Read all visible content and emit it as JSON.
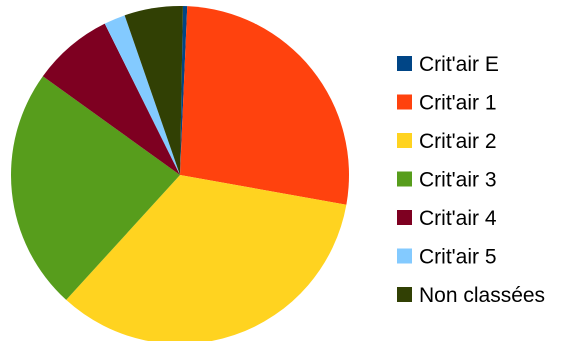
{
  "chart_data": {
    "type": "pie",
    "start_angle_deg": 0,
    "direction": "clockwise",
    "legend_position": "right",
    "title": "",
    "slices": [
      {
        "label": "Crit'air E",
        "percent": 0.4,
        "color": "#004586"
      },
      {
        "label": "Crit'air 1",
        "percent": 26.7,
        "color": "#ff420e"
      },
      {
        "label": "Crit'air 2",
        "percent": 33.4,
        "color": "#ffd320"
      },
      {
        "label": "Crit'air 3",
        "percent": 22.8,
        "color": "#579d1c"
      },
      {
        "label": "Crit'air 4",
        "percent": 7.6,
        "color": "#7e0021"
      },
      {
        "label": "Crit'air 5",
        "percent": 2.0,
        "color": "#83caff"
      },
      {
        "label": "Non classées",
        "percent": 5.5,
        "color": "#314004"
      }
    ]
  }
}
